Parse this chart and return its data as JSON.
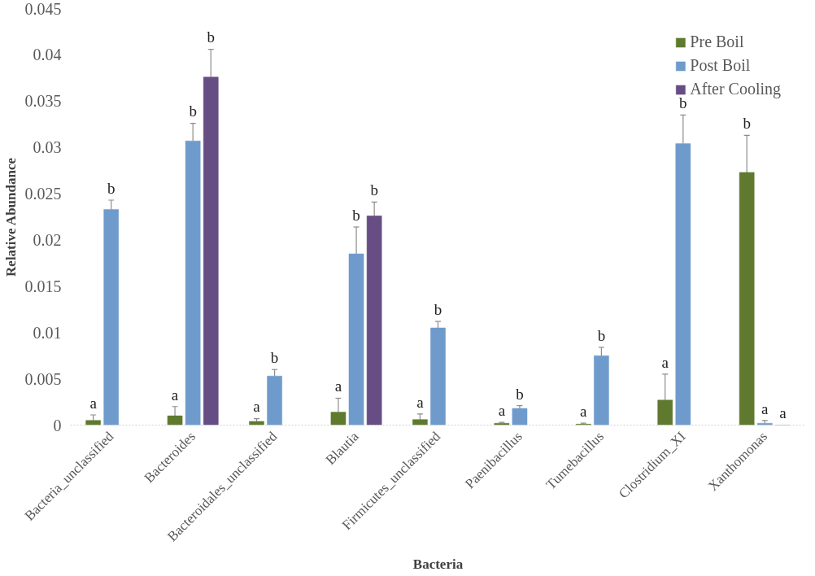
{
  "chart_data": {
    "type": "bar",
    "xlabel": "Bacteria",
    "ylabel": "Relative Abundance",
    "categories": [
      "Bacteria_unclassified",
      "Bacteroides",
      "Bacteroidales_unclassified",
      "Blautia",
      "Firmicutes_unclassified",
      "Paenibacillus",
      "Tumebacillus",
      "Clostridium_XI",
      "Xanthomonas"
    ],
    "series": [
      {
        "name": "Pre Boil",
        "color": "#5f7a2f",
        "values": [
          0.0005,
          0.001,
          0.0004,
          0.0014,
          0.0006,
          0.0002,
          0.0001,
          0.0027,
          0.0273
        ],
        "errors": [
          [
            0.0005,
            0.0011
          ],
          [
            0.001,
            0.002
          ],
          [
            0.0004,
            0.0007
          ],
          [
            0.0014,
            0.0029
          ],
          [
            0.0006,
            0.0012
          ],
          [
            0.0002,
            0.0003
          ],
          [
            0.0001,
            0.0002
          ],
          [
            0.0027,
            0.0055
          ],
          [
            0.0273,
            0.0313
          ]
        ],
        "value_labels": [
          "a",
          "a",
          "a",
          "a",
          "a",
          "a",
          "a",
          "a",
          "b"
        ]
      },
      {
        "name": "Post Boil",
        "color": "#6f9bcc",
        "values": [
          0.0233,
          0.0307,
          0.0053,
          0.0185,
          0.0105,
          0.0018,
          0.0075,
          0.0304,
          0.0002
        ],
        "errors": [
          [
            0.0233,
            0.0243
          ],
          [
            0.0307,
            0.0326
          ],
          [
            0.0053,
            0.006
          ],
          [
            0.0185,
            0.0214
          ],
          [
            0.0105,
            0.0112
          ],
          [
            0.0018,
            0.0021
          ],
          [
            0.0075,
            0.0084
          ],
          [
            0.0304,
            0.0335
          ],
          [
            0.0002,
            0.0005
          ]
        ],
        "value_labels": [
          "b",
          "b",
          "b",
          "b",
          "b",
          "b",
          "b",
          "b",
          "a"
        ]
      },
      {
        "name": "After Cooling",
        "color": "#664d84",
        "values": [
          null,
          0.0376,
          null,
          0.0226,
          null,
          null,
          null,
          null,
          0
        ],
        "errors": [
          null,
          [
            0.0376,
            0.0406
          ],
          null,
          [
            0.0226,
            0.0241
          ],
          null,
          null,
          null,
          null,
          null
        ],
        "value_labels": [
          null,
          "b",
          null,
          "b",
          null,
          null,
          null,
          null,
          "a"
        ]
      }
    ],
    "ylim": [
      0,
      0.045
    ],
    "yticks": [
      0,
      0.005,
      0.01,
      0.015,
      0.02,
      0.025,
      0.03,
      0.035,
      0.04,
      0.045
    ],
    "grid": false,
    "legend": "top right"
  }
}
